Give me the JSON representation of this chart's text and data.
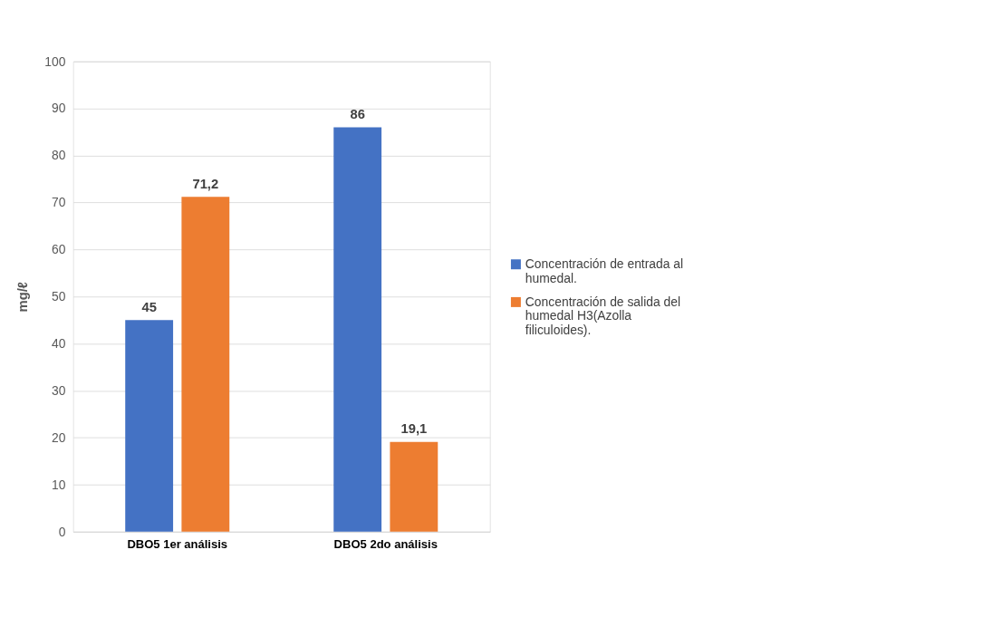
{
  "chart_data": {
    "type": "bar",
    "ylabel": "mg/ℓ",
    "categories": [
      "DBO5 1er análisis",
      "DBO5 2do análisis"
    ],
    "series": [
      {
        "name": "Concentración de entrada al humedal.",
        "color": "#4472c4",
        "values": [
          45,
          86
        ],
        "value_labels": [
          "45",
          "86"
        ]
      },
      {
        "name": "Concentración de salida del humedal H3(Azolla filiculoides).",
        "color": "#ed7d31",
        "values": [
          71.2,
          19.1
        ],
        "value_labels": [
          "71,2",
          "19,1"
        ]
      }
    ],
    "ylim": [
      0,
      100
    ],
    "yticks": [
      0,
      10,
      20,
      30,
      40,
      50,
      60,
      70,
      80,
      90,
      100
    ],
    "grid": "y",
    "legend": "right"
  }
}
